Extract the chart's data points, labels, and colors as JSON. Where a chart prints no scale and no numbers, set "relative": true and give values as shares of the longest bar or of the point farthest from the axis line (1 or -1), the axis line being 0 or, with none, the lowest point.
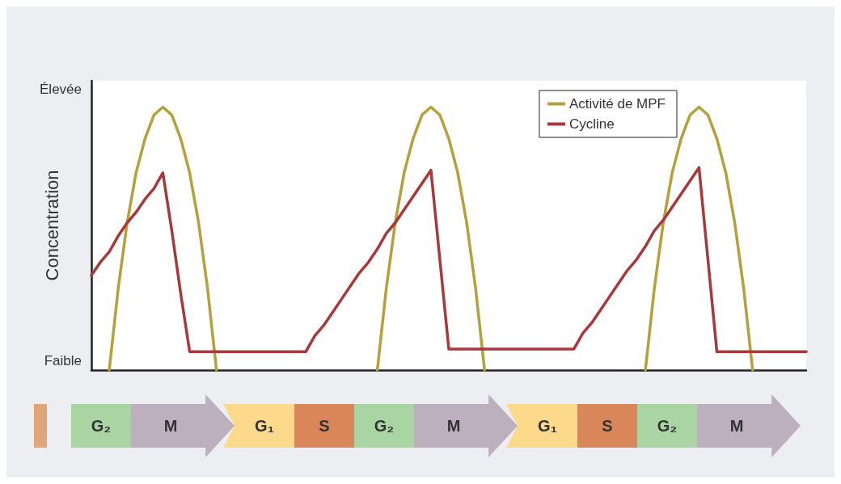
{
  "chart_data": {
    "type": "line",
    "relative": true,
    "ylabel": "Concentration",
    "categories": [
      null,
      null,
      null,
      null,
      null,
      null,
      null,
      null,
      null,
      null,
      null,
      null,
      null,
      null,
      null,
      null,
      null,
      null,
      null,
      null,
      null,
      null,
      null,
      null,
      null,
      null,
      null,
      null,
      null,
      null,
      null,
      null,
      null,
      null,
      null,
      null,
      null,
      null,
      null,
      null,
      null,
      null,
      null,
      null,
      null,
      null,
      null,
      null,
      null,
      null,
      null,
      null,
      null,
      null,
      null,
      null,
      null,
      null,
      null,
      null,
      null,
      null,
      null,
      null,
      null,
      null,
      null,
      null,
      null,
      null,
      null,
      null,
      null,
      null,
      null,
      null,
      null,
      null,
      null,
      null,
      null
    ],
    "grid": false,
    "legend": "top right",
    "marker": "none",
    "line_style": "solid",
    "series": [
      {
        "name": "Activité de MPF",
        "color": "#b5a03a",
        "values": [
          null,
          null,
          0,
          0.31,
          0.56,
          0.75,
          0.88,
          0.97,
          1,
          0.97,
          0.88,
          0.75,
          0.56,
          0.31,
          0,
          null,
          null,
          null,
          null,
          null,
          null,
          null,
          null,
          null,
          null,
          null,
          null,
          null,
          null,
          null,
          null,
          null,
          0,
          0.31,
          0.56,
          0.75,
          0.88,
          0.97,
          1,
          0.97,
          0.88,
          0.75,
          0.56,
          0.31,
          0,
          null,
          null,
          null,
          null,
          null,
          null,
          null,
          null,
          null,
          null,
          null,
          null,
          null,
          null,
          null,
          null,
          null,
          0,
          0.31,
          0.56,
          0.75,
          0.88,
          0.97,
          1,
          0.97,
          0.88,
          0.75,
          0.56,
          0.31,
          0,
          null,
          null,
          null,
          null,
          null,
          null
        ]
      },
      {
        "name": "Cycline",
        "color": "#a8383a",
        "values": [
          0.36,
          0.41,
          0.45,
          0.51,
          0.56,
          0.6,
          0.65,
          0.69,
          0.75,
          0.53,
          0.29,
          0.07,
          0.07,
          0.07,
          0.07,
          0.07,
          0.07,
          0.07,
          0.07,
          0.07,
          0.07,
          0.07,
          0.07,
          0.07,
          0.07,
          0.13,
          0.17,
          0.22,
          0.27,
          0.32,
          0.37,
          0.41,
          0.46,
          0.52,
          0.56,
          0.61,
          0.66,
          0.71,
          0.76,
          0.42,
          0.08,
          0.08,
          0.08,
          0.08,
          0.08,
          0.08,
          0.08,
          0.08,
          0.08,
          0.08,
          0.08,
          0.08,
          0.08,
          0.08,
          0.08,
          0.14,
          0.18,
          0.23,
          0.28,
          0.33,
          0.38,
          0.42,
          0.47,
          0.53,
          0.57,
          0.62,
          0.67,
          0.72,
          0.77,
          0.42,
          0.07,
          0.07,
          0.07,
          0.07,
          0.07,
          0.07,
          0.07,
          0.07,
          0.07,
          0.07,
          0.07
        ]
      }
    ],
    "annotations": [
      "Élevée",
      "Faible",
      "G₂",
      "M",
      "G₁",
      "S",
      "G₂",
      "M",
      "G₁",
      "S",
      "G₂",
      "M"
    ]
  }
}
